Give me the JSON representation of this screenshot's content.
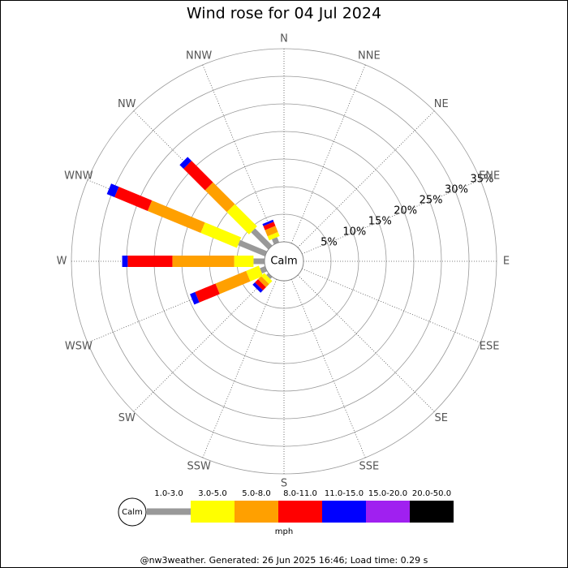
{
  "chart_data": {
    "type": "windrose",
    "title": "Wind rose for 04 Jul 2024",
    "directions": [
      "N",
      "NNE",
      "NE",
      "ENE",
      "E",
      "ESE",
      "SE",
      "SSE",
      "S",
      "SSW",
      "SW",
      "WSW",
      "W",
      "WNW",
      "NW",
      "NNW"
    ],
    "center_label": "Calm",
    "rlim": [
      0,
      35
    ],
    "rticks": [
      {
        "value": 5,
        "label": "5%"
      },
      {
        "value": 10,
        "label": "10%"
      },
      {
        "value": 15,
        "label": "15%"
      },
      {
        "value": 20,
        "label": "20%"
      },
      {
        "value": 25,
        "label": "25%"
      },
      {
        "value": 30,
        "label": "30%"
      },
      {
        "value": 35,
        "label": "35%"
      }
    ],
    "series": [
      {
        "name": "1.0-3.0",
        "color": "#999999",
        "values": [
          0,
          0,
          0,
          0,
          0,
          0,
          0,
          0,
          0,
          0,
          0.5,
          1.0,
          2.0,
          5.3,
          4.4,
          1.0
        ]
      },
      {
        "name": "3.0-5.0",
        "color": "#ffff00",
        "values": [
          0,
          0,
          0,
          0,
          0,
          0,
          0,
          0,
          0,
          0,
          0.8,
          2.5,
          3.5,
          7.1,
          5.7,
          0.8
        ]
      },
      {
        "name": "5.0-8.0",
        "color": "#ffa000",
        "values": [
          0,
          0,
          0,
          0,
          0,
          0,
          0,
          0,
          0,
          0,
          0.8,
          6.0,
          11.2,
          10.4,
          5.6,
          1.2
        ]
      },
      {
        "name": "8.0-11.0",
        "color": "#ff0000",
        "values": [
          0,
          0,
          0,
          0,
          0,
          0,
          0,
          0,
          0,
          0,
          0.8,
          4.0,
          8.1,
          6.5,
          5.5,
          0.8
        ]
      },
      {
        "name": "11.0-15.0",
        "color": "#0000ff",
        "values": [
          0,
          0,
          0,
          0,
          0,
          0,
          0,
          0,
          0,
          0,
          0.6,
          1.0,
          1.0,
          1.5,
          1.0,
          0.4
        ]
      },
      {
        "name": "15.0-20.0",
        "color": "#a020f0",
        "values": [
          0,
          0,
          0,
          0,
          0,
          0,
          0,
          0,
          0,
          0,
          0,
          0,
          0,
          0,
          0,
          0
        ]
      },
      {
        "name": "20.0-50.0",
        "color": "#000000",
        "values": [
          0,
          0,
          0,
          0,
          0,
          0,
          0,
          0,
          0,
          0,
          0,
          0,
          0,
          0,
          0,
          0
        ]
      }
    ],
    "legend_unit": "mph",
    "footer": "@nw3weather. Generated: 26 Jun 2025 16:46; Load time: 0.29 s"
  }
}
